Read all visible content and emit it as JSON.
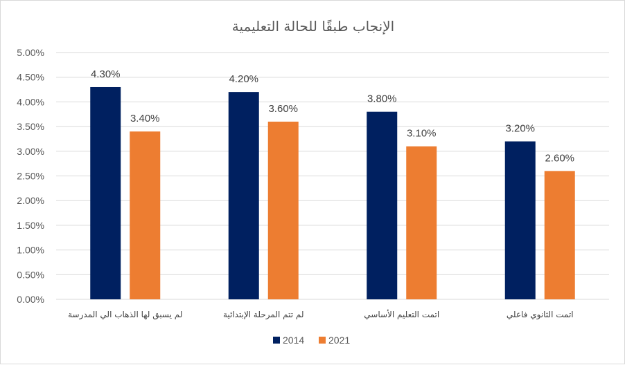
{
  "chart_data": {
    "type": "bar",
    "title": "الإنجاب طبقًا للحالة التعليمية",
    "categories": [
      "لم يسبق لها الذهاب الي المدرسة",
      "لم تتم المرحلة الإبتدائية",
      "اتمت التعليم الأساسي",
      "اتمت الثانوي فاعلي"
    ],
    "series": [
      {
        "name": "2014",
        "color": "#002060",
        "values": [
          4.3,
          4.2,
          3.8,
          3.2
        ],
        "labels": [
          "4.30%",
          "4.20%",
          "3.80%",
          "3.20%"
        ]
      },
      {
        "name": "2021",
        "color": "#ED7D31",
        "values": [
          3.4,
          3.6,
          3.1,
          2.6
        ],
        "labels": [
          "3.40%",
          "3.60%",
          "3.10%",
          "2.60%"
        ]
      }
    ],
    "ylim": [
      0,
      5
    ],
    "yticks": [
      0,
      0.5,
      1,
      1.5,
      2,
      2.5,
      3,
      3.5,
      4,
      4.5,
      5
    ],
    "ytick_labels": [
      "0.00%",
      "0.50%",
      "1.00%",
      "1.50%",
      "2.00%",
      "2.50%",
      "3.00%",
      "3.50%",
      "4.00%",
      "4.50%",
      "5.00%"
    ],
    "grid": true,
    "legend_position": "bottom",
    "xlabel": "",
    "ylabel": ""
  }
}
